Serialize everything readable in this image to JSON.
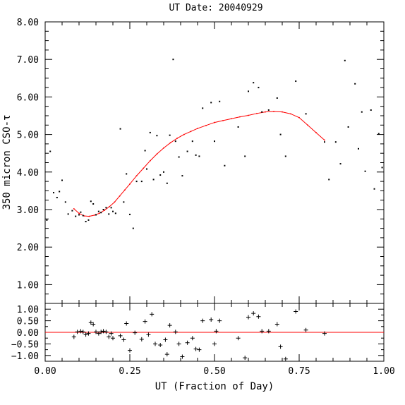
{
  "chart_data": [
    {
      "type": "scatter",
      "title": "UT Date: 20040929",
      "ylabel": "350 micron CSO-τ",
      "xlim": [
        0.0,
        1.0
      ],
      "ylim": [
        0.5,
        8.0
      ],
      "yticks": [
        1.0,
        2.0,
        3.0,
        4.0,
        5.0,
        6.0,
        7.0,
        8.0
      ],
      "ytick_labels": [
        "1.00",
        "2.00",
        "3.00",
        "4.00",
        "5.00",
        "6.00",
        "7.00",
        "8.00"
      ],
      "grid": false,
      "series": [
        {
          "kind": "points",
          "color": "#000000",
          "points": [
            [
              0.005,
              2.72
            ],
            [
              0.015,
              4.55
            ],
            [
              0.025,
              3.45
            ],
            [
              0.035,
              3.32
            ],
            [
              0.042,
              3.48
            ],
            [
              0.05,
              3.78
            ],
            [
              0.06,
              3.2
            ],
            [
              0.068,
              2.88
            ],
            [
              0.08,
              2.97
            ],
            [
              0.09,
              2.82
            ],
            [
              0.1,
              2.86
            ],
            [
              0.105,
              2.93
            ],
            [
              0.112,
              2.84
            ],
            [
              0.12,
              2.68
            ],
            [
              0.128,
              2.72
            ],
            [
              0.135,
              3.22
            ],
            [
              0.142,
              3.15
            ],
            [
              0.15,
              2.86
            ],
            [
              0.158,
              2.95
            ],
            [
              0.165,
              2.92
            ],
            [
              0.172,
              3.0
            ],
            [
              0.18,
              3.05
            ],
            [
              0.188,
              2.88
            ],
            [
              0.195,
              3.05
            ],
            [
              0.2,
              2.95
            ],
            [
              0.208,
              2.9
            ],
            [
              0.222,
              5.15
            ],
            [
              0.232,
              3.2
            ],
            [
              0.24,
              3.95
            ],
            [
              0.25,
              2.87
            ],
            [
              0.26,
              2.5
            ],
            [
              0.27,
              3.75
            ],
            [
              0.285,
              3.75
            ],
            [
              0.295,
              4.57
            ],
            [
              0.3,
              4.08
            ],
            [
              0.31,
              5.05
            ],
            [
              0.32,
              3.8
            ],
            [
              0.33,
              4.97
            ],
            [
              0.34,
              3.92
            ],
            [
              0.35,
              4.0
            ],
            [
              0.36,
              3.7
            ],
            [
              0.368,
              4.98
            ],
            [
              0.378,
              7.0
            ],
            [
              0.385,
              4.82
            ],
            [
              0.395,
              4.4
            ],
            [
              0.405,
              3.9
            ],
            [
              0.42,
              4.55
            ],
            [
              0.435,
              4.82
            ],
            [
              0.445,
              4.45
            ],
            [
              0.455,
              4.42
            ],
            [
              0.465,
              5.7
            ],
            [
              0.49,
              5.85
            ],
            [
              0.5,
              4.82
            ],
            [
              0.515,
              5.88
            ],
            [
              0.53,
              4.17
            ],
            [
              0.57,
              5.2
            ],
            [
              0.59,
              4.42
            ],
            [
              0.6,
              6.15
            ],
            [
              0.615,
              6.38
            ],
            [
              0.63,
              6.25
            ],
            [
              0.64,
              5.6
            ],
            [
              0.66,
              5.65
            ],
            [
              0.685,
              5.97
            ],
            [
              0.695,
              5.0
            ],
            [
              0.71,
              4.42
            ],
            [
              0.74,
              6.42
            ],
            [
              0.77,
              5.55
            ],
            [
              0.825,
              4.8
            ],
            [
              0.838,
              3.8
            ],
            [
              0.858,
              4.8
            ],
            [
              0.872,
              4.22
            ],
            [
              0.885,
              6.97
            ],
            [
              0.895,
              5.2
            ],
            [
              0.915,
              6.35
            ],
            [
              0.925,
              4.62
            ],
            [
              0.935,
              5.6
            ],
            [
              0.945,
              4.02
            ],
            [
              0.962,
              5.65
            ],
            [
              0.972,
              3.55
            ],
            [
              0.985,
              5.02
            ],
            [
              0.995,
              4.12
            ]
          ]
        },
        {
          "kind": "fit-line",
          "color": "#ff0000",
          "points": [
            [
              0.085,
              3.02
            ],
            [
              0.1,
              2.9
            ],
            [
              0.115,
              2.83
            ],
            [
              0.13,
              2.82
            ],
            [
              0.145,
              2.85
            ],
            [
              0.16,
              2.9
            ],
            [
              0.175,
              2.98
            ],
            [
              0.19,
              3.08
            ],
            [
              0.205,
              3.2
            ],
            [
              0.22,
              3.36
            ],
            [
              0.235,
              3.52
            ],
            [
              0.25,
              3.68
            ],
            [
              0.27,
              3.9
            ],
            [
              0.29,
              4.1
            ],
            [
              0.31,
              4.3
            ],
            [
              0.33,
              4.48
            ],
            [
              0.35,
              4.64
            ],
            [
              0.37,
              4.78
            ],
            [
              0.39,
              4.9
            ],
            [
              0.41,
              5.0
            ],
            [
              0.43,
              5.08
            ],
            [
              0.45,
              5.16
            ],
            [
              0.475,
              5.24
            ],
            [
              0.5,
              5.32
            ],
            [
              0.525,
              5.37
            ],
            [
              0.55,
              5.42
            ],
            [
              0.575,
              5.47
            ],
            [
              0.6,
              5.51
            ],
            [
              0.625,
              5.56
            ],
            [
              0.65,
              5.6
            ],
            [
              0.675,
              5.61
            ],
            [
              0.7,
              5.6
            ],
            [
              0.725,
              5.55
            ],
            [
              0.75,
              5.45
            ],
            [
              0.775,
              5.25
            ],
            [
              0.8,
              5.05
            ],
            [
              0.825,
              4.85
            ]
          ]
        }
      ]
    },
    {
      "type": "scatter",
      "xlabel": "UT (Fraction of Day)",
      "xlim": [
        0.0,
        1.0
      ],
      "ylim": [
        -1.25,
        1.25
      ],
      "xticks": [
        0.0,
        0.25,
        0.5,
        0.75,
        1.0
      ],
      "xtick_labels": [
        "0.00",
        "0.25",
        "0.50",
        "0.75",
        "1.00"
      ],
      "yticks": [
        -1.0,
        -0.5,
        0.0,
        0.5,
        1.0
      ],
      "ytick_labels": [
        "−1.00",
        "−0.50",
        "0.00",
        "0.50",
        "1.00"
      ],
      "grid": false,
      "series": [
        {
          "kind": "residuals",
          "color": "#000000",
          "points": [
            [
              0.085,
              -0.2
            ],
            [
              0.095,
              0.02
            ],
            [
              0.105,
              0.05
            ],
            [
              0.112,
              0.02
            ],
            [
              0.12,
              -0.1
            ],
            [
              0.128,
              -0.05
            ],
            [
              0.135,
              0.42
            ],
            [
              0.142,
              0.35
            ],
            [
              0.15,
              0.02
            ],
            [
              0.158,
              -0.05
            ],
            [
              0.165,
              0.02
            ],
            [
              0.172,
              0.05
            ],
            [
              0.18,
              0.02
            ],
            [
              0.188,
              -0.2
            ],
            [
              0.195,
              -0.05
            ],
            [
              0.2,
              -0.25
            ],
            [
              0.222,
              -0.15
            ],
            [
              0.232,
              -0.32
            ],
            [
              0.24,
              0.38
            ],
            [
              0.25,
              -0.78
            ],
            [
              0.265,
              -0.02
            ],
            [
              0.285,
              -0.3
            ],
            [
              0.295,
              0.47
            ],
            [
              0.305,
              -0.1
            ],
            [
              0.315,
              0.78
            ],
            [
              0.325,
              -0.5
            ],
            [
              0.34,
              -0.55
            ],
            [
              0.355,
              -0.32
            ],
            [
              0.36,
              -0.95
            ],
            [
              0.368,
              0.3
            ],
            [
              0.385,
              0.02
            ],
            [
              0.395,
              -0.5
            ],
            [
              0.405,
              -1.05
            ],
            [
              0.42,
              -0.45
            ],
            [
              0.435,
              -0.25
            ],
            [
              0.445,
              -0.72
            ],
            [
              0.455,
              -0.75
            ],
            [
              0.465,
              0.5
            ],
            [
              0.49,
              0.55
            ],
            [
              0.5,
              -0.5
            ],
            [
              0.505,
              0.05
            ],
            [
              0.515,
              0.5
            ],
            [
              0.57,
              -0.25
            ],
            [
              0.59,
              -1.1
            ],
            [
              0.6,
              0.65
            ],
            [
              0.615,
              0.82
            ],
            [
              0.63,
              0.68
            ],
            [
              0.64,
              0.05
            ],
            [
              0.66,
              0.05
            ],
            [
              0.685,
              0.35
            ],
            [
              0.695,
              -0.62
            ],
            [
              0.71,
              -1.15
            ],
            [
              0.74,
              0.9
            ],
            [
              0.77,
              0.1
            ],
            [
              0.825,
              -0.05
            ]
          ]
        },
        {
          "kind": "zero-line",
          "color": "#ff0000",
          "points": [
            [
              0.0,
              0.0
            ],
            [
              1.0,
              0.0
            ]
          ]
        }
      ]
    }
  ]
}
